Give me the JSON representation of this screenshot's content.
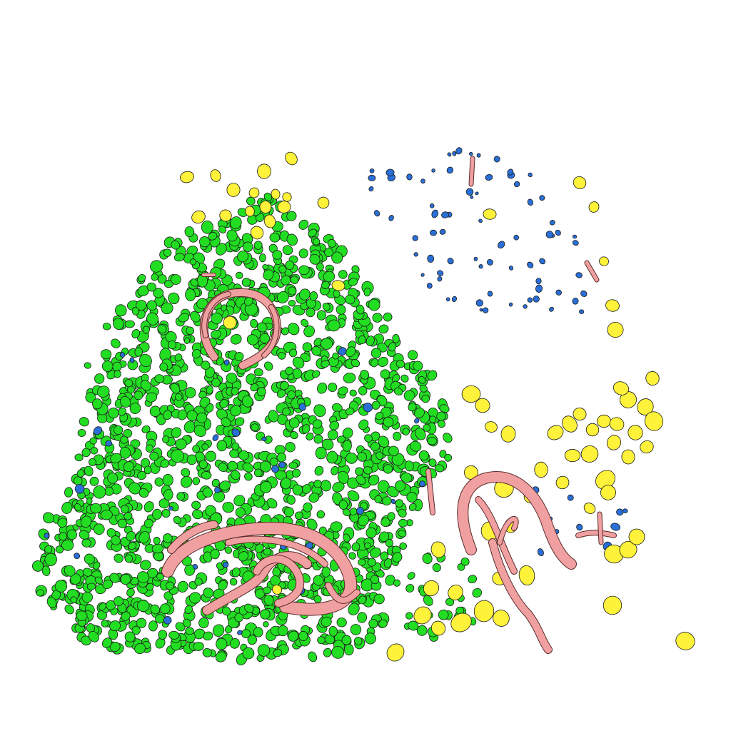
{
  "scene": {
    "background": "#ffffff",
    "colors": {
      "green": "#22dd22",
      "yellow": "#fff23a",
      "blue": "#2a6fd6",
      "pink": "#f0a0a0",
      "outline": "#1a1a1a"
    },
    "object_types": [
      "green-cell",
      "yellow-cell",
      "blue-cell",
      "pink-fiber"
    ]
  }
}
